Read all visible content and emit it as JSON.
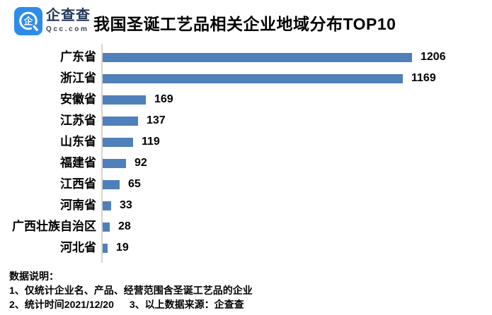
{
  "brand": {
    "name": "企查查",
    "domain": "Qcc.com",
    "logo_color": "#2d8ce8",
    "logo_glyph": "企"
  },
  "header": {
    "title": "我国圣诞工艺品相关企业地域分布TOP10"
  },
  "chart_data": {
    "type": "bar",
    "orientation": "horizontal",
    "title": "我国圣诞工艺品相关企业地域分布TOP10",
    "categories": [
      "广东省",
      "浙江省",
      "安徽省",
      "江苏省",
      "山东省",
      "福建省",
      "江西省",
      "河南省",
      "广西壮族自治区",
      "河北省"
    ],
    "values": [
      1206,
      1169,
      169,
      137,
      119,
      92,
      65,
      33,
      28,
      19
    ],
    "xlim": [
      0,
      1206
    ],
    "bar_color": "#4f80ba",
    "axis_line_color": "#d8d5cf",
    "value_labels_shown": true,
    "legend": "none",
    "grid": "off"
  },
  "footer": {
    "heading": "数据说明：",
    "note1": "1、仅统计企业名、产品、经营范围含圣诞工艺品的企业",
    "note2": "2、统计时间2021/12/20",
    "note3": "3、以上数据来源：企查查"
  }
}
